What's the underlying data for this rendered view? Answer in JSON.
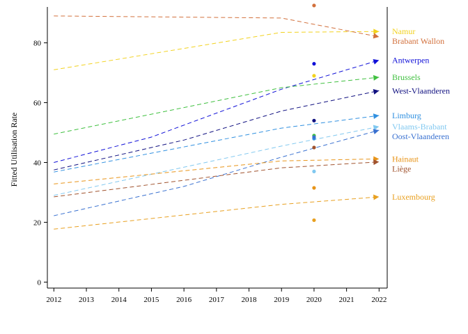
{
  "chart_data": {
    "type": "line",
    "title": "",
    "xlabel": "",
    "ylabel": "Fitted Utilisation Rate",
    "x": [
      2012,
      2013,
      2014,
      2015,
      2016,
      2017,
      2018,
      2019,
      2020,
      2021,
      2022
    ],
    "xlim": [
      2011.8,
      2022.25
    ],
    "ylim": [
      -2,
      92
    ],
    "yticks": [
      0,
      20,
      40,
      60,
      80
    ],
    "grid": false,
    "line_style": "dashed",
    "series": [
      {
        "name": "Namur",
        "color": "#f2d21e",
        "fit": [
          [
            2012,
            71
          ],
          [
            2019,
            83.5
          ],
          [
            2022,
            83.8
          ]
        ],
        "observed_2020": 69
      },
      {
        "name": "Brabant Wallon",
        "color": "#d2703c",
        "fit": [
          [
            2012,
            89
          ],
          [
            2019,
            88.3
          ],
          [
            2022,
            82
          ]
        ],
        "observed_2020": 92.5
      },
      {
        "name": "Antwerpen",
        "color": "#1010d8",
        "fit": [
          [
            2012,
            40
          ],
          [
            2015,
            48.5
          ],
          [
            2019,
            64.5
          ],
          [
            2022,
            74.2
          ]
        ],
        "observed_2020": 73
      },
      {
        "name": "Brussels",
        "color": "#40c040",
        "fit": [
          [
            2012,
            49.5
          ],
          [
            2019,
            65
          ],
          [
            2022,
            68.5
          ]
        ],
        "observed_2020": 49
      },
      {
        "name": "West-Vlaanderen",
        "color": "#101080",
        "fit": [
          [
            2012,
            37.5
          ],
          [
            2016,
            47.5
          ],
          [
            2019,
            57.2
          ],
          [
            2022,
            64
          ]
        ],
        "observed_2020": 54
      },
      {
        "name": "Limburg",
        "color": "#3090e0",
        "fit": [
          [
            2012,
            36.8
          ],
          [
            2019,
            51.5
          ],
          [
            2022,
            55.7
          ]
        ],
        "observed_2020": 48
      },
      {
        "name": "Vlaams-Brabant",
        "color": "#80c8f0",
        "fit": [
          [
            2012,
            29
          ],
          [
            2019,
            45.5
          ],
          [
            2022,
            52
          ]
        ],
        "observed_2020": 37
      },
      {
        "name": "Oost-Vlaanderen",
        "color": "#3870d0",
        "fit": [
          [
            2012,
            22.2
          ],
          [
            2016,
            32
          ],
          [
            2019,
            41.8
          ],
          [
            2022,
            50.8
          ]
        ],
        "observed_2020": 48.5
      },
      {
        "name": "Hainaut",
        "color": "#e89418",
        "fit": [
          [
            2012,
            32.8
          ],
          [
            2019,
            40.5
          ],
          [
            2022,
            41.2
          ]
        ],
        "observed_2020": 31.5
      },
      {
        "name": "Liège",
        "color": "#a0522d",
        "fit": [
          [
            2012,
            28.5
          ],
          [
            2019,
            38.2
          ],
          [
            2022,
            40.2
          ]
        ],
        "observed_2020": 45
      },
      {
        "name": "Luxembourg",
        "color": "#e8a020",
        "fit": [
          [
            2012,
            17.7
          ],
          [
            2019,
            26
          ],
          [
            2022,
            28.5
          ]
        ],
        "observed_2020": 20.7
      }
    ]
  }
}
